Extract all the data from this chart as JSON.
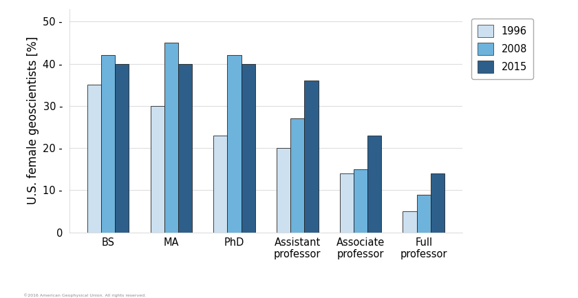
{
  "categories": [
    "BS",
    "MA",
    "PhD",
    "Assistant\nprofessor",
    "Associate\nprofessor",
    "Full\nprofessor"
  ],
  "years": [
    "1996",
    "2008",
    "2015"
  ],
  "values": {
    "1996": [
      35,
      30,
      23,
      20,
      14,
      5
    ],
    "2008": [
      42,
      45,
      42,
      27,
      15,
      9
    ],
    "2015": [
      40,
      40,
      40,
      36,
      23,
      14
    ]
  },
  "colors": {
    "1996": "#cce0f0",
    "2008": "#6db3dc",
    "2015": "#2d5f8a"
  },
  "ylabel": "U.S. female geoscientists [%]",
  "ylim": [
    0,
    53
  ],
  "yticks": [
    0,
    10,
    20,
    30,
    40,
    50
  ],
  "bar_width": 0.22,
  "plot_bg": "#ffffff",
  "fig_bg": "#ffffff",
  "grid_color": "#dddddd",
  "edge_color": "#222222",
  "legend_fontsize": 10.5,
  "ylabel_fontsize": 12,
  "tick_fontsize": 10.5,
  "copyright": "©2016 American Geophysical Union. All rights reserved."
}
